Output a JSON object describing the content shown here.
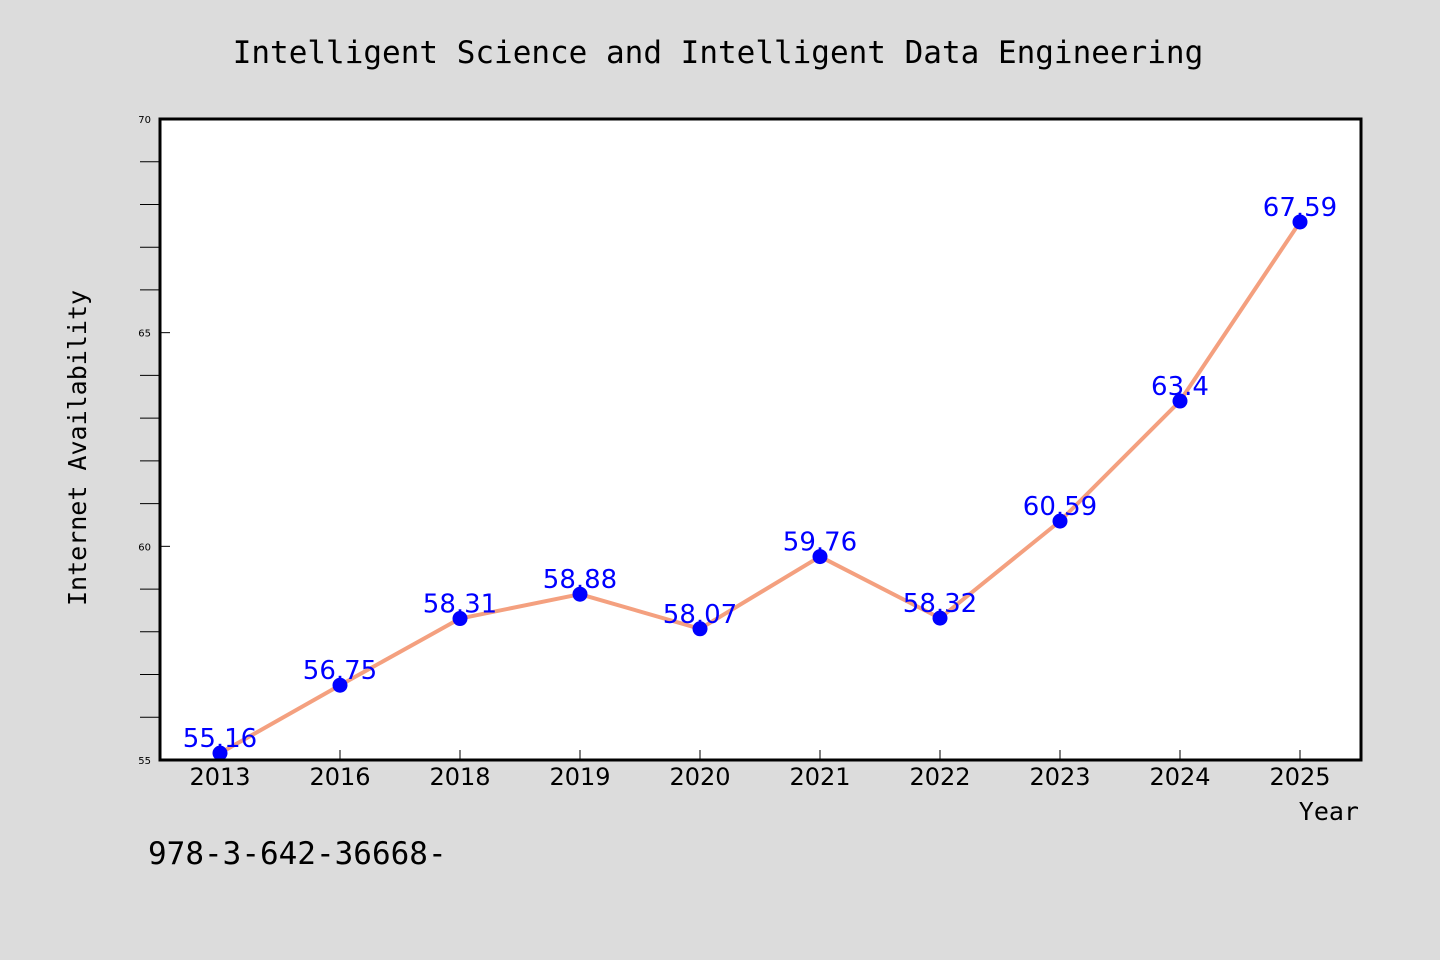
{
  "chart_data": {
    "type": "line",
    "title": "Intelligent Science and Intelligent Data Engineering",
    "xlabel": "Year",
    "ylabel": "Internet Availability",
    "categories": [
      "2013",
      "2016",
      "2018",
      "2019",
      "2020",
      "2021",
      "2022",
      "2023",
      "2024",
      "2025"
    ],
    "series": [
      {
        "values": [
          55.16,
          56.75,
          58.31,
          58.88,
          58.07,
          59.76,
          58.32,
          60.59,
          63.4,
          67.59
        ]
      }
    ],
    "data_labels": [
      "55.16",
      "56.75",
      "58.31",
      "58.88",
      "58.07",
      "59.76",
      "58.32",
      "60.59",
      "63.4",
      "67.59"
    ],
    "ylim": [
      55,
      70
    ],
    "yticks": [
      "55",
      "60",
      "65",
      "70"
    ],
    "grid": false,
    "legend": "none",
    "colors": {
      "background": "#dcdcdc",
      "plot_background": "#ffffff",
      "line": "#f4a07f",
      "marker": "#0000ff",
      "data_label": "#0000ff",
      "frame": "#000000"
    }
  },
  "footnote": "978-3-642-36668-"
}
